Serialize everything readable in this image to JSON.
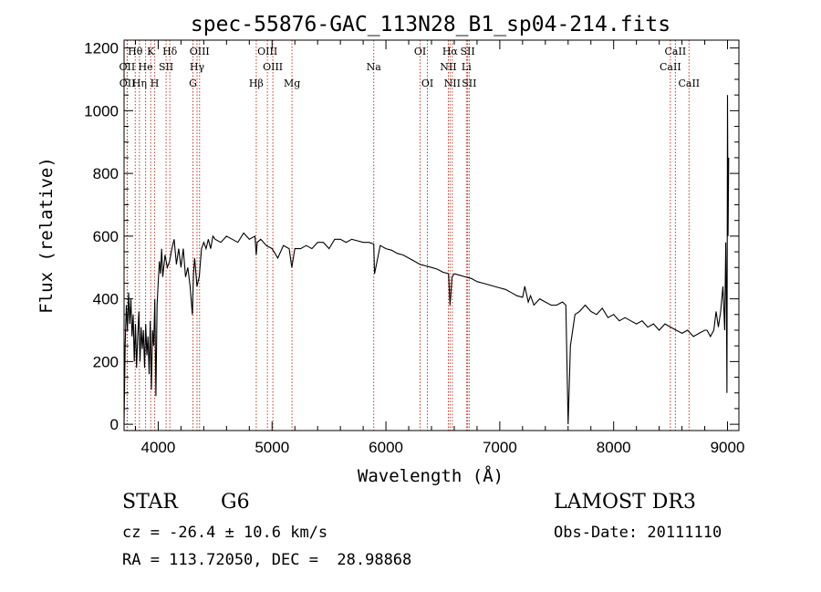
{
  "chart_data": {
    "type": "line",
    "title": "spec-55876-GAC_113N28_B1_sp04-214.fits",
    "xlabel": "Wavelength (Å)",
    "ylabel": "Flux (relative)",
    "xlim": [
      3700,
      9100
    ],
    "ylim": [
      -20,
      1225
    ],
    "xticks": [
      4000,
      5000,
      6000,
      7000,
      8000,
      9000
    ],
    "yticks": [
      0,
      200,
      400,
      600,
      800,
      1000,
      1200
    ],
    "grid": false,
    "line_color": "#000000",
    "marker_color": "#c0392b",
    "series": [
      {
        "x": [
          3700,
          3710,
          3720,
          3730,
          3740,
          3750,
          3760,
          3770,
          3780,
          3790,
          3800,
          3810,
          3820,
          3830,
          3840,
          3850,
          3860,
          3870,
          3880,
          3890,
          3900,
          3910,
          3920,
          3930,
          3940,
          3950,
          3960,
          3970,
          3980,
          3990,
          4000,
          4010,
          4020,
          4030,
          4040,
          4060,
          4080,
          4100,
          4120,
          4140,
          4160,
          4180,
          4200,
          4220,
          4240,
          4260,
          4280,
          4300,
          4310,
          4320,
          4340,
          4360,
          4380,
          4400,
          4420,
          4440,
          4460,
          4480,
          4500,
          4550,
          4600,
          4650,
          4700,
          4750,
          4800,
          4850,
          4861,
          4870,
          4900,
          4950,
          5000,
          5050,
          5100,
          5150,
          5173,
          5200,
          5250,
          5300,
          5350,
          5400,
          5450,
          5500,
          5550,
          5600,
          5650,
          5700,
          5750,
          5800,
          5850,
          5893,
          5900,
          5950,
          6000,
          6050,
          6100,
          6150,
          6200,
          6250,
          6300,
          6350,
          6400,
          6450,
          6500,
          6550,
          6563,
          6580,
          6600,
          6650,
          6700,
          6750,
          6800,
          6850,
          6900,
          6950,
          7000,
          7050,
          7100,
          7150,
          7200,
          7220,
          7250,
          7270,
          7300,
          7350,
          7400,
          7450,
          7500,
          7550,
          7580,
          7600,
          7610,
          7620,
          7640,
          7660,
          7700,
          7750,
          7800,
          7850,
          7900,
          7950,
          8000,
          8050,
          8100,
          8150,
          8200,
          8250,
          8300,
          8350,
          8400,
          8450,
          8500,
          8550,
          8600,
          8650,
          8700,
          8750,
          8800,
          8820,
          8850,
          8880,
          8900,
          8920,
          8940,
          8960,
          8975,
          8985,
          8990,
          8995,
          9000,
          9005,
          9010
        ],
        "y": [
          0,
          250,
          380,
          300,
          420,
          320,
          400,
          280,
          350,
          200,
          320,
          180,
          280,
          360,
          200,
          310,
          240,
          300,
          180,
          320,
          220,
          280,
          160,
          330,
          110,
          300,
          250,
          400,
          90,
          380,
          450,
          520,
          480,
          560,
          470,
          540,
          500,
          520,
          560,
          590,
          510,
          560,
          500,
          560,
          470,
          500,
          440,
          350,
          480,
          530,
          440,
          470,
          560,
          580,
          560,
          590,
          560,
          600,
          590,
          580,
          600,
          590,
          580,
          610,
          590,
          600,
          540,
          580,
          590,
          570,
          560,
          530,
          570,
          560,
          500,
          560,
          560,
          570,
          560,
          580,
          580,
          560,
          590,
          590,
          580,
          590,
          585,
          580,
          580,
          575,
          480,
          570,
          560,
          555,
          545,
          540,
          530,
          520,
          510,
          505,
          500,
          495,
          485,
          480,
          380,
          470,
          480,
          475,
          470,
          465,
          455,
          450,
          445,
          440,
          435,
          430,
          420,
          410,
          405,
          440,
          390,
          410,
          380,
          400,
          390,
          380,
          380,
          390,
          380,
          0,
          120,
          250,
          300,
          350,
          360,
          380,
          360,
          350,
          370,
          340,
          350,
          330,
          340,
          330,
          320,
          330,
          310,
          320,
          300,
          320,
          310,
          300,
          290,
          300,
          280,
          290,
          300,
          300,
          280,
          300,
          360,
          310,
          360,
          440,
          300,
          580,
          380,
          100,
          1050,
          600,
          850
        ]
      }
    ],
    "line_markers": [
      {
        "label": "Hθ",
        "x": 3798,
        "row": 1
      },
      {
        "label": "OII",
        "x": 3727,
        "row": 2
      },
      {
        "label": "OII",
        "x": 3729,
        "row": 3
      },
      {
        "label": "K",
        "x": 3934,
        "row": 1
      },
      {
        "label": "He",
        "x": 3889,
        "row": 2
      },
      {
        "label": "Hη",
        "x": 3835,
        "row": 3
      },
      {
        "label": "H",
        "x": 3969,
        "row": 3
      },
      {
        "label": "SII",
        "x": 4069,
        "row": 2
      },
      {
        "label": "Hδ",
        "x": 4102,
        "row": 1
      },
      {
        "label": "OIII",
        "x": 4363,
        "row": 1
      },
      {
        "label": "Hγ",
        "x": 4341,
        "row": 2
      },
      {
        "label": "G",
        "x": 4305,
        "row": 3
      },
      {
        "label": "OIII",
        "x": 4959,
        "row": 1
      },
      {
        "label": "OIII",
        "x": 5007,
        "row": 2
      },
      {
        "label": "Hβ",
        "x": 4861,
        "row": 3
      },
      {
        "label": "Mg",
        "x": 5175,
        "row": 3
      },
      {
        "label": "Na",
        "x": 5893,
        "row": 2
      },
      {
        "label": "OI",
        "x": 6300,
        "row": 1
      },
      {
        "label": "OI",
        "x": 6364,
        "row": 3
      },
      {
        "label": "Hα",
        "x": 6563,
        "row": 1
      },
      {
        "label": "NII",
        "x": 6548,
        "row": 2
      },
      {
        "label": "NII",
        "x": 6583,
        "row": 3
      },
      {
        "label": "SII",
        "x": 6717,
        "row": 1
      },
      {
        "label": "Li",
        "x": 6707,
        "row": 2
      },
      {
        "label": "SII",
        "x": 6731,
        "row": 3
      },
      {
        "label": "CaII",
        "x": 8542,
        "row": 1
      },
      {
        "label": "CaII",
        "x": 8498,
        "row": 2
      },
      {
        "label": "CaII",
        "x": 8662,
        "row": 3
      }
    ]
  },
  "info": {
    "object_class": "STAR",
    "subclass": "G6",
    "redshift": "cz = -26.4 ± 10.6 km/s",
    "coords": "RA = 113.72050, DEC =  28.98868",
    "survey": "LAMOST DR3",
    "obs_date": "Obs-Date: 20111110"
  }
}
